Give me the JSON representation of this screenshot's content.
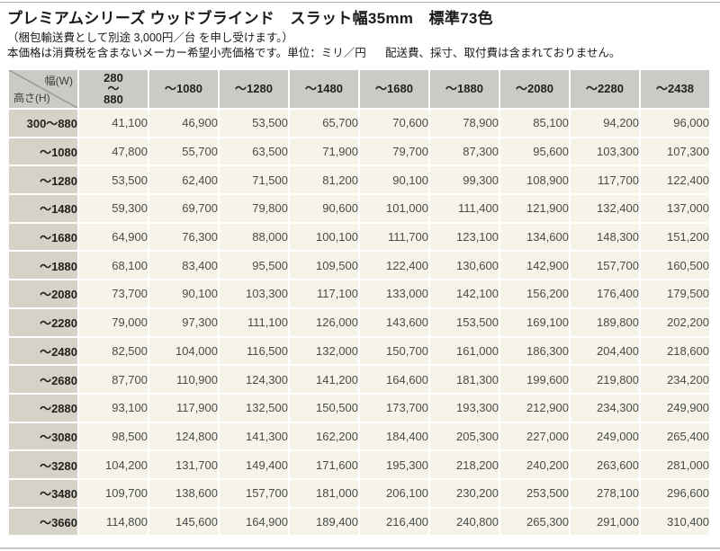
{
  "header": {
    "title": "プレミアムシリーズ ウッドブラインド　スラット幅35mm　標準73色",
    "packing_note": "（梱包輸送費として別途 3,000円／台 を申し受けます。）",
    "price_note": "本価格は消費税を含まないメーカー希望小売価格です。単位：ミリ／円",
    "delivery_note": "配送費、採寸、取付費は含まれておりません。"
  },
  "table": {
    "corner": {
      "width_label": "幅(W)",
      "height_label": "高さ(H)"
    },
    "col_headers": [
      {
        "lines": [
          "280",
          "〜",
          "880"
        ]
      },
      {
        "lines": [
          "〜1080"
        ]
      },
      {
        "lines": [
          "〜1280"
        ]
      },
      {
        "lines": [
          "〜1480"
        ]
      },
      {
        "lines": [
          "〜1680"
        ]
      },
      {
        "lines": [
          "〜1880"
        ]
      },
      {
        "lines": [
          "〜2080"
        ]
      },
      {
        "lines": [
          "〜2280"
        ]
      },
      {
        "lines": [
          "〜2438"
        ]
      }
    ],
    "rows": [
      {
        "height": "300〜880",
        "prices": [
          "41,100",
          "46,900",
          "53,500",
          "65,700",
          "70,600",
          "78,900",
          "85,100",
          "94,200",
          "96,000"
        ]
      },
      {
        "height": "〜1080",
        "prices": [
          "47,800",
          "55,700",
          "63,500",
          "71,900",
          "79,700",
          "87,300",
          "95,600",
          "103,300",
          "107,300"
        ]
      },
      {
        "height": "〜1280",
        "prices": [
          "53,500",
          "62,400",
          "71,500",
          "81,200",
          "90,100",
          "99,300",
          "108,900",
          "117,700",
          "122,400"
        ]
      },
      {
        "height": "〜1480",
        "prices": [
          "59,300",
          "69,700",
          "79,800",
          "90,600",
          "101,000",
          "111,400",
          "121,900",
          "132,400",
          "137,000"
        ]
      },
      {
        "height": "〜1680",
        "prices": [
          "64,900",
          "76,300",
          "88,000",
          "100,100",
          "111,700",
          "123,100",
          "134,600",
          "148,300",
          "151,200"
        ]
      },
      {
        "height": "〜1880",
        "prices": [
          "68,100",
          "83,400",
          "95,500",
          "109,500",
          "122,400",
          "130,600",
          "142,900",
          "157,700",
          "160,500"
        ]
      },
      {
        "height": "〜2080",
        "prices": [
          "73,700",
          "90,100",
          "103,300",
          "117,100",
          "133,000",
          "142,100",
          "156,200",
          "176,400",
          "179,500"
        ]
      },
      {
        "height": "〜2280",
        "prices": [
          "79,000",
          "97,300",
          "111,100",
          "126,000",
          "143,600",
          "153,500",
          "169,100",
          "189,800",
          "202,200"
        ]
      },
      {
        "height": "〜2480",
        "prices": [
          "82,500",
          "104,000",
          "116,500",
          "132,000",
          "150,700",
          "161,000",
          "186,300",
          "204,400",
          "218,600"
        ]
      },
      {
        "height": "〜2680",
        "prices": [
          "87,700",
          "110,900",
          "124,300",
          "141,200",
          "164,600",
          "181,300",
          "199,600",
          "219,800",
          "234,200"
        ]
      },
      {
        "height": "〜2880",
        "prices": [
          "93,100",
          "117,900",
          "132,500",
          "150,500",
          "173,700",
          "193,300",
          "212,900",
          "234,300",
          "249,900"
        ]
      },
      {
        "height": "〜3080",
        "prices": [
          "98,500",
          "124,800",
          "141,300",
          "162,200",
          "184,400",
          "205,300",
          "227,000",
          "249,000",
          "265,400"
        ]
      },
      {
        "height": "〜3280",
        "prices": [
          "104,200",
          "131,700",
          "149,400",
          "171,600",
          "195,300",
          "218,200",
          "240,200",
          "263,600",
          "281,000"
        ]
      },
      {
        "height": "〜3480",
        "prices": [
          "109,700",
          "138,600",
          "157,700",
          "181,000",
          "206,100",
          "230,200",
          "253,500",
          "278,100",
          "296,600"
        ]
      },
      {
        "height": "〜3660",
        "prices": [
          "114,800",
          "145,600",
          "164,900",
          "189,400",
          "216,400",
          "240,800",
          "265,300",
          "291,000",
          "310,400"
        ]
      }
    ]
  },
  "colors": {
    "col_header_bg": "#cbcac6",
    "row_header_bg": "#d6d2c7",
    "cell_bg": "#f6f4e9",
    "diagonal_line": "#9a9a96",
    "top_rule": "#ababab",
    "bottom_rule": "#c9c8c3"
  }
}
